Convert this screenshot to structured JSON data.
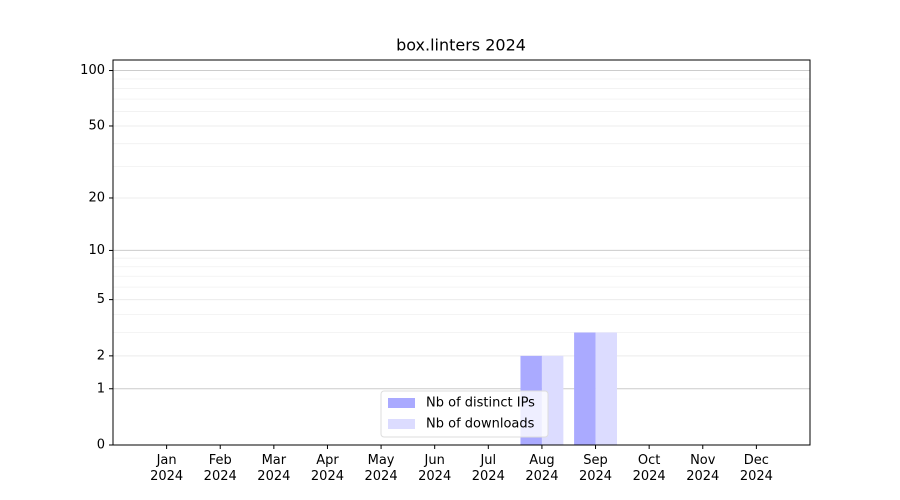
{
  "chart_data": {
    "type": "bar",
    "title": "box.linters 2024",
    "categories": [
      "Jan\n2024",
      "Feb\n2024",
      "Mar\n2024",
      "Apr\n2024",
      "May\n2024",
      "Jun\n2024",
      "Jul\n2024",
      "Aug\n2024",
      "Sep\n2024",
      "Oct\n2024",
      "Nov\n2024",
      "Dec\n2024"
    ],
    "series": [
      {
        "name": "Nb of distinct IPs",
        "color": "#aaaaff",
        "values": [
          0,
          0,
          0,
          0,
          0,
          0,
          0,
          2,
          3,
          0,
          0,
          0
        ]
      },
      {
        "name": "Nb of downloads",
        "color": "#dcdcff",
        "values": [
          0,
          0,
          0,
          0,
          0,
          0,
          0,
          2,
          3,
          0,
          0,
          0
        ]
      }
    ],
    "yscale": "log1p",
    "ylim": [
      0,
      114
    ],
    "yticks": [
      0,
      1,
      2,
      5,
      10,
      20,
      50,
      100
    ],
    "grid": true,
    "legend": "lower center"
  }
}
